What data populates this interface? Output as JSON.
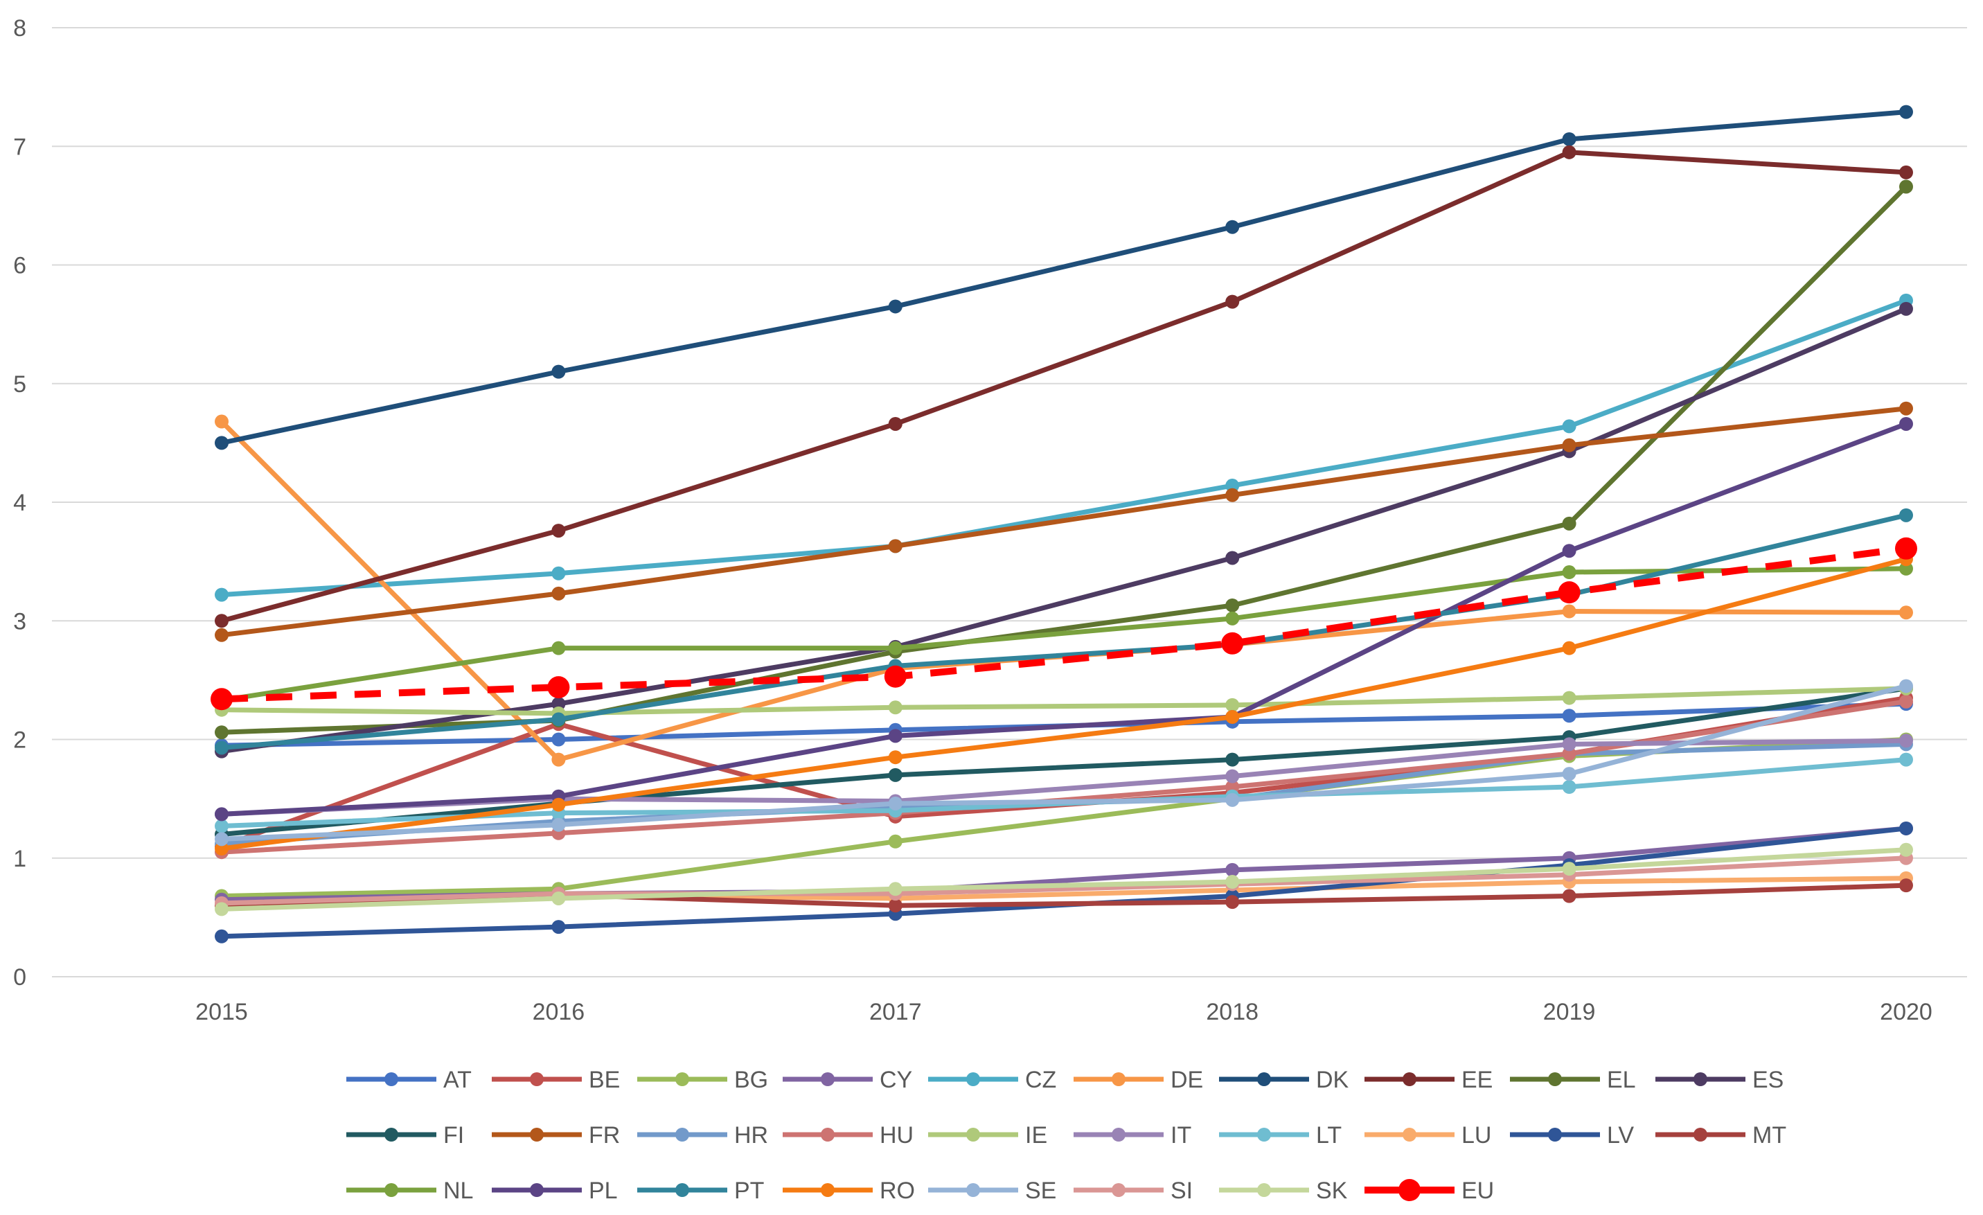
{
  "chart_data": {
    "type": "line",
    "title": "",
    "xlabel": "",
    "ylabel": "",
    "x": [
      "2015",
      "2016",
      "2017",
      "2018",
      "2019",
      "2020"
    ],
    "ylim": [
      0,
      8
    ],
    "yticks": [
      0,
      1,
      2,
      3,
      4,
      5,
      6,
      7,
      8
    ],
    "ytick_labels": [
      "0",
      "1",
      "2",
      "3",
      "4",
      "5",
      "6",
      "7",
      "8"
    ],
    "grid": true,
    "legend": "bottom",
    "series": [
      {
        "name": "AT",
        "color": "#4472c4",
        "values": [
          1.95,
          2.0,
          2.08,
          2.15,
          2.2,
          2.3
        ]
      },
      {
        "name": "BE",
        "color": "#c0504d",
        "values": [
          1.1,
          2.13,
          1.35,
          1.55,
          1.88,
          2.35
        ]
      },
      {
        "name": "BG",
        "color": "#9bbb59",
        "values": [
          0.68,
          0.74,
          1.14,
          1.5,
          1.86,
          2.0
        ]
      },
      {
        "name": "CY",
        "color": "#8064a2",
        "values": [
          0.65,
          0.7,
          0.72,
          0.9,
          1.0,
          1.25
        ]
      },
      {
        "name": "CZ",
        "color": "#4bacc6",
        "values": [
          3.22,
          3.4,
          3.63,
          4.14,
          4.64,
          5.7
        ]
      },
      {
        "name": "DE",
        "color": "#f79646",
        "values": [
          4.68,
          1.83,
          2.6,
          2.8,
          3.08,
          3.07
        ]
      },
      {
        "name": "DK",
        "color": "#1f4e79",
        "values": [
          4.5,
          5.1,
          5.65,
          6.32,
          7.06,
          7.29
        ]
      },
      {
        "name": "EE",
        "color": "#7b2c2c",
        "values": [
          3.0,
          3.76,
          4.66,
          5.69,
          6.95,
          6.78
        ]
      },
      {
        "name": "EL",
        "color": "#5f7530",
        "values": [
          2.06,
          2.16,
          2.74,
          3.13,
          3.82,
          6.66
        ]
      },
      {
        "name": "ES",
        "color": "#4d3b62",
        "values": [
          1.9,
          2.3,
          2.78,
          3.53,
          4.43,
          5.63
        ]
      },
      {
        "name": "FI",
        "color": "#215a61",
        "values": [
          1.2,
          1.46,
          1.7,
          1.83,
          2.02,
          2.43
        ]
      },
      {
        "name": "FR",
        "color": "#b3571a",
        "values": [
          2.88,
          3.23,
          3.63,
          4.06,
          4.48,
          4.79
        ]
      },
      {
        "name": "HR",
        "color": "#729aca",
        "values": [
          1.12,
          1.31,
          1.43,
          1.5,
          1.88,
          1.96
        ]
      },
      {
        "name": "HU",
        "color": "#cd7371",
        "values": [
          1.05,
          1.21,
          1.38,
          1.6,
          1.88,
          2.32
        ]
      },
      {
        "name": "IE",
        "color": "#afc97a",
        "values": [
          2.25,
          2.22,
          2.27,
          2.29,
          2.35,
          2.43
        ]
      },
      {
        "name": "IT",
        "color": "#9983b5",
        "values": [
          1.37,
          1.5,
          1.48,
          1.69,
          1.96,
          1.99
        ]
      },
      {
        "name": "LT",
        "color": "#6fbdd1",
        "values": [
          1.27,
          1.38,
          1.4,
          1.52,
          1.6,
          1.83
        ]
      },
      {
        "name": "LU",
        "color": "#f9ab6b",
        "values": [
          0.6,
          0.69,
          0.66,
          0.73,
          0.8,
          0.83
        ]
      },
      {
        "name": "LV",
        "color": "#2f5597",
        "values": [
          0.34,
          0.42,
          0.53,
          0.68,
          0.94,
          1.25
        ]
      },
      {
        "name": "MT",
        "color": "#a5403d",
        "values": [
          0.6,
          0.69,
          0.6,
          0.63,
          0.68,
          0.77
        ]
      },
      {
        "name": "NL",
        "color": "#7aa13e",
        "values": [
          2.33,
          2.77,
          2.77,
          3.02,
          3.41,
          3.44
        ]
      },
      {
        "name": "PL",
        "color": "#5b4485",
        "values": [
          1.37,
          1.52,
          2.03,
          2.19,
          3.59,
          4.66
        ]
      },
      {
        "name": "PT",
        "color": "#31849b",
        "values": [
          1.93,
          2.17,
          2.62,
          2.8,
          3.22,
          3.89
        ]
      },
      {
        "name": "RO",
        "color": "#f57b12",
        "values": [
          1.08,
          1.45,
          1.85,
          2.19,
          2.77,
          3.52
        ]
      },
      {
        "name": "SE",
        "color": "#95b3d7",
        "values": [
          1.16,
          1.28,
          1.46,
          1.49,
          1.71,
          2.45
        ]
      },
      {
        "name": "SI",
        "color": "#da9694",
        "values": [
          0.62,
          0.7,
          0.7,
          0.78,
          0.86,
          1.0
        ]
      },
      {
        "name": "SK",
        "color": "#c4d79b",
        "values": [
          0.57,
          0.66,
          0.74,
          0.8,
          0.91,
          1.07
        ]
      },
      {
        "name": "EU",
        "color": "#ff0000",
        "dashed": true,
        "values": [
          2.34,
          2.44,
          2.53,
          2.81,
          3.24,
          3.61
        ]
      }
    ]
  }
}
